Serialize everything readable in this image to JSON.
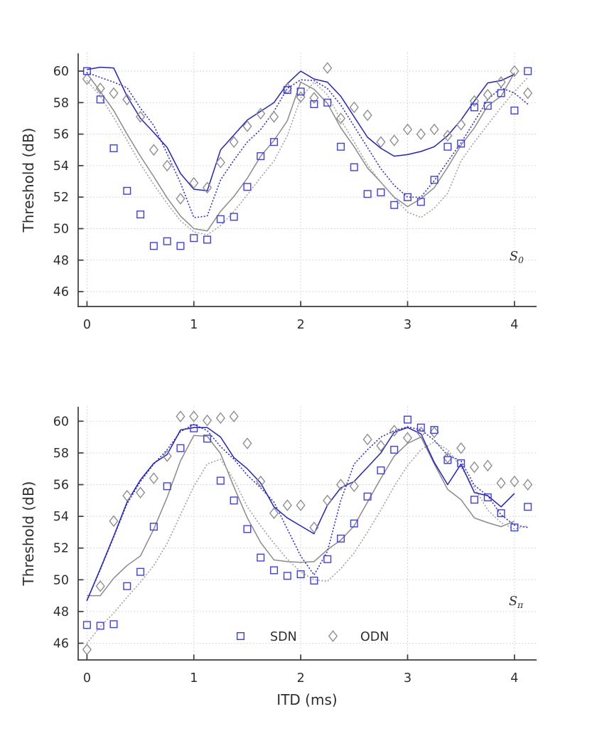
{
  "figure": {
    "xlabel": "ITD (ms)",
    "colors": {
      "grid": "#cdcdcd",
      "axis": "#3c3c3c",
      "text": "#2e2e2e",
      "sdn_marker": "#3d3df0",
      "sdn_line": "#2121cd",
      "sdn_dotted": "#3434e4",
      "odn_marker": "#8f8f8f",
      "odn_line": "#8a8a8a",
      "odn_dotted": "#a6a6a6"
    },
    "legend": {
      "items": [
        {
          "label": "SDN",
          "marker": "square",
          "color": "#3d3df0"
        },
        {
          "label": "ODN",
          "marker": "diamond",
          "color": "#8f8f8f"
        }
      ]
    }
  },
  "chart_data": [
    {
      "panel": "upper",
      "type": "line+scatter",
      "title": "",
      "xlabel": "",
      "ylabel": "Threshold (dB)",
      "annotation": {
        "base": "S",
        "sub": "0"
      },
      "xlim": [
        -0.08,
        4.2
      ],
      "ylim": [
        45.0,
        61.1
      ],
      "xticks": [
        0,
        1,
        2,
        3,
        4
      ],
      "yticks": [
        46,
        48,
        50,
        52,
        54,
        56,
        58,
        60
      ],
      "grid": true,
      "x_start": 0,
      "x_step": 0.125,
      "series": [
        {
          "id": "odn-fit-solid",
          "name": "ODN model (solid)",
          "kind": "line",
          "style": "solid",
          "color": "#8a8a8a",
          "y": [
            59.85,
            58.7,
            57.5,
            56.0,
            54.6,
            53.3,
            51.95,
            50.8,
            50.0,
            49.85,
            51.1,
            52.05,
            53.2,
            54.6,
            55.6,
            56.85,
            59.3,
            58.85,
            57.95,
            56.4,
            55.2,
            53.85,
            52.95,
            52.0,
            51.4,
            51.9,
            52.6,
            53.9,
            55.3,
            56.4,
            57.8,
            58.4,
            59.9
          ]
        },
        {
          "id": "odn-fit-dotted",
          "name": "ODN model (dotted)",
          "kind": "line",
          "style": "dotted",
          "color": "#a6a6a6",
          "y": [
            59.4,
            58.4,
            57.05,
            55.6,
            54.1,
            52.8,
            51.6,
            50.5,
            49.8,
            49.6,
            50.2,
            51.1,
            52.15,
            53.25,
            54.3,
            55.9,
            58.3,
            59.3,
            58.5,
            56.9,
            55.5,
            54.05,
            52.95,
            51.95,
            51.05,
            50.7,
            51.3,
            52.25,
            54.3,
            55.5,
            56.6,
            57.7,
            58.7,
            59.6
          ]
        },
        {
          "id": "sdn-fit-dotted",
          "name": "SDN model (dotted)",
          "kind": "line",
          "style": "dotted",
          "color": "#3434e4",
          "y": [
            59.9,
            59.6,
            59.3,
            58.95,
            57.65,
            56.55,
            54.75,
            52.9,
            50.7,
            50.8,
            53.1,
            54.35,
            55.5,
            56.3,
            57.45,
            58.9,
            59.45,
            59.4,
            58.9,
            57.85,
            56.5,
            55.15,
            53.8,
            52.75,
            52.0,
            52.0,
            53.05,
            54.25,
            55.45,
            56.8,
            58.2,
            58.95,
            58.6,
            57.9
          ]
        },
        {
          "id": "sdn-fit-solid",
          "name": "SDN model (solid)",
          "kind": "line",
          "style": "solid",
          "color": "#2121cd",
          "y": [
            60.1,
            60.25,
            60.2,
            58.4,
            57.0,
            56.1,
            55.15,
            53.5,
            52.5,
            52.4,
            55.0,
            55.95,
            56.9,
            57.45,
            58.0,
            59.2,
            60.0,
            59.5,
            59.3,
            58.4,
            57.1,
            55.8,
            55.1,
            54.6,
            54.7,
            54.9,
            55.2,
            55.9,
            56.9,
            58.1,
            59.25,
            59.4,
            59.8
          ]
        },
        {
          "id": "odn-data",
          "name": "ODN thresholds",
          "kind": "scatter",
          "marker": "diamond",
          "color": "#8f8f8f",
          "y": [
            59.5,
            58.9,
            58.6,
            58.2,
            57.1,
            55.0,
            54.0,
            51.9,
            52.9,
            52.6,
            54.2,
            55.5,
            56.5,
            57.3,
            57.1,
            58.9,
            58.35,
            58.3,
            60.2,
            57.0,
            57.7,
            57.2,
            55.5,
            55.6,
            56.3,
            56.0,
            56.3,
            55.9,
            56.6,
            58.1,
            58.5,
            59.3,
            60.0,
            58.6
          ]
        },
        {
          "id": "sdn-data",
          "name": "SDN thresholds",
          "kind": "scatter",
          "marker": "square",
          "color": "#3d3df0",
          "y": [
            60.0,
            58.2,
            55.1,
            52.4,
            50.9,
            48.9,
            49.2,
            48.9,
            49.4,
            49.3,
            50.6,
            50.75,
            52.65,
            54.6,
            55.5,
            58.8,
            58.7,
            57.9,
            58.0,
            55.2,
            53.9,
            52.2,
            52.3,
            51.5,
            52.0,
            51.7,
            53.1,
            55.2,
            55.4,
            57.7,
            57.8,
            58.6,
            57.5,
            60.0
          ]
        }
      ]
    },
    {
      "panel": "lower",
      "type": "line+scatter",
      "title": "",
      "xlabel": "ITD (ms)",
      "ylabel": "Threshold (dB)",
      "annotation": {
        "base": "S",
        "sub": "π"
      },
      "xlim": [
        -0.08,
        4.2
      ],
      "ylim": [
        44.9,
        60.9
      ],
      "xticks": [
        0,
        1,
        2,
        3,
        4
      ],
      "yticks": [
        46,
        48,
        50,
        52,
        54,
        56,
        58,
        60
      ],
      "grid": true,
      "x_start": 0,
      "x_step": 0.125,
      "show_legend": true,
      "series": [
        {
          "id": "odn-fit-solid",
          "name": "ODN model (solid)",
          "kind": "line",
          "style": "solid",
          "color": "#8a8a8a",
          "y": [
            49.0,
            49.0,
            50.1,
            50.9,
            51.5,
            53.2,
            55.2,
            57.5,
            59.1,
            59.05,
            57.95,
            55.85,
            53.9,
            52.35,
            51.25,
            51.15,
            51.1,
            51.15,
            51.9,
            52.5,
            53.4,
            54.9,
            56.4,
            57.8,
            58.6,
            59.0,
            57.3,
            55.7,
            55.05,
            53.9,
            53.6,
            53.35,
            53.7
          ]
        },
        {
          "id": "odn-fit-dotted",
          "name": "ODN model (dotted)",
          "kind": "line",
          "style": "dotted",
          "color": "#a6a6a6",
          "y": [
            46.0,
            47.05,
            47.9,
            48.9,
            49.85,
            50.9,
            52.3,
            54.1,
            55.9,
            57.3,
            57.6,
            56.3,
            54.6,
            53.4,
            52.3,
            51.3,
            50.5,
            50.0,
            49.9,
            50.7,
            51.7,
            53.0,
            54.4,
            55.9,
            57.2,
            58.2,
            58.7,
            58.2,
            57.1,
            55.8,
            54.4,
            53.6,
            53.2,
            53.4
          ]
        },
        {
          "id": "sdn-fit-dotted",
          "name": "SDN model (dotted)",
          "kind": "line",
          "style": "dotted",
          "color": "#3434e4",
          "y": [
            48.7,
            50.65,
            52.7,
            54.8,
            56.2,
            57.3,
            58.2,
            59.35,
            59.8,
            59.4,
            58.4,
            57.6,
            56.6,
            55.8,
            54.9,
            53.2,
            51.5,
            50.3,
            51.8,
            55.0,
            57.3,
            58.2,
            59.0,
            59.4,
            59.65,
            59.45,
            58.8,
            57.85,
            57.5,
            55.95,
            55.3,
            54.1,
            53.45,
            53.3
          ]
        },
        {
          "id": "sdn-fit-solid",
          "name": "SDN model (solid)",
          "kind": "line",
          "style": "solid",
          "color": "#2121cd",
          "y": [
            48.7,
            50.7,
            52.75,
            54.9,
            56.3,
            57.35,
            57.9,
            59.45,
            59.6,
            59.6,
            59.0,
            57.7,
            57.0,
            56.1,
            54.6,
            53.9,
            53.4,
            52.9,
            54.7,
            55.8,
            56.2,
            57.1,
            58.0,
            59.3,
            59.6,
            59.2,
            57.4,
            56.0,
            57.3,
            55.5,
            55.3,
            54.6,
            55.45
          ]
        },
        {
          "id": "odn-data",
          "name": "ODN thresholds",
          "kind": "scatter",
          "marker": "diamond",
          "color": "#8f8f8f",
          "y": [
            45.6,
            49.6,
            53.7,
            55.3,
            55.5,
            56.4,
            57.8,
            60.3,
            60.3,
            60.05,
            60.2,
            60.3,
            58.6,
            56.2,
            54.2,
            54.7,
            54.7,
            53.3,
            55.0,
            56.0,
            55.9,
            58.85,
            58.45,
            59.4,
            58.95,
            59.3,
            59.3,
            57.7,
            58.3,
            57.1,
            57.2,
            56.1,
            56.2,
            56.0
          ]
        },
        {
          "id": "sdn-data",
          "name": "SDN thresholds",
          "kind": "scatter",
          "marker": "square",
          "color": "#3d3df0",
          "y": [
            47.15,
            47.1,
            47.2,
            49.6,
            50.5,
            53.35,
            55.9,
            58.3,
            59.55,
            58.9,
            56.25,
            55.0,
            53.2,
            51.4,
            50.6,
            50.25,
            50.35,
            49.95,
            51.3,
            52.6,
            53.55,
            55.25,
            56.9,
            58.2,
            60.1,
            59.6,
            59.45,
            57.55,
            57.35,
            55.05,
            55.2,
            54.2,
            53.3,
            54.6
          ]
        }
      ]
    }
  ]
}
